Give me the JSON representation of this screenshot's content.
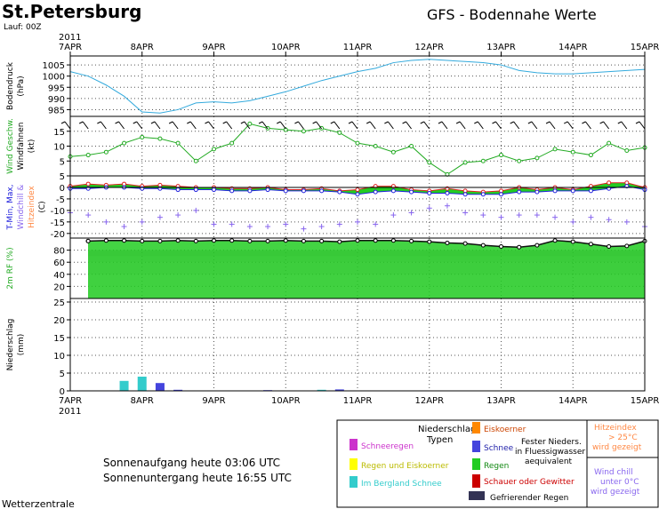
{
  "header": {
    "city": "St.Petersburg",
    "run": "Lauf: 00Z",
    "title": "GFS  -  Bodennahe Werte",
    "year": "2011"
  },
  "footer": {
    "sunrise": "Sonnenaufgang heute 03:06 UTC",
    "sunset": "Sonnenuntergang heute 16:55 UTC",
    "brand": "Wetterzentrale"
  },
  "legend": {
    "title_line1": "Niederschlags",
    "title_line2": "Typen",
    "schneeregen": "Schneeregen",
    "regen_eis": "Regen und Eiskoerner",
    "bergland": "Im Bergland Schnee",
    "eiskoerner": "Eiskoerner",
    "schnee": "Schnee",
    "regen": "Regen",
    "schauer": "Schauer oder Gewitter",
    "gefrierender": "Gefrierender Regen",
    "fester_1": "Fester Nieders.",
    "fester_2": "in Fluessigwasser",
    "fester_3": "aequivalent",
    "hitze_1": "Hitzeindex",
    "hitze_2": "> 25°C",
    "hitze_3": "wird gezeigt",
    "wind_1": "Wind chill",
    "wind_2": "unter 0°C",
    "wind_3": "wird gezeigt",
    "colors": {
      "schneeregen": "#cc33cc",
      "regen_eis": "#ffff00",
      "bergland": "#33cccc",
      "eiskoerner": "#ff8800",
      "schnee": "#4444dd",
      "regen": "#22cc22",
      "schauer": "#cc0000",
      "gefrierender": "#333355",
      "hitze_text": "#ff8844",
      "wind_text": "#8866ee"
    }
  },
  "chart_data": {
    "type": "line",
    "x_labels": [
      "7APR",
      "8APR",
      "9APR",
      "10APR",
      "11APR",
      "12APR",
      "13APR",
      "14APR",
      "15APR"
    ],
    "panels": [
      {
        "name": "pressure",
        "ylabel_1": "Bodendruck",
        "ylabel_2": "(hPa)",
        "yticks": [
          1005,
          1000,
          995,
          990,
          985
        ],
        "ylim": [
          982,
          1009
        ],
        "series": [
          {
            "color": "#33aadd",
            "x": [
              0,
              0.25,
              0.5,
              0.75,
              1,
              1.25,
              1.5,
              1.75,
              2,
              2.25,
              2.5,
              2.75,
              3,
              3.25,
              3.5,
              3.75,
              4,
              4.25,
              4.5,
              4.75,
              5,
              5.25,
              5.5,
              5.75,
              6,
              6.25,
              6.5,
              6.75,
              7,
              7.25,
              7.5,
              7.75,
              8
            ],
            "values": [
              1002,
              1000,
              996,
              991,
              984,
              983.5,
              985,
              988,
              988.5,
              988,
              989,
              991,
              993,
              995.5,
              998,
              1000,
              1002,
              1003.5,
              1006,
              1007,
              1007.5,
              1007,
              1006.5,
              1006,
              1005,
              1002.5,
              1001.5,
              1001,
              1001,
              1001.5,
              1002,
              1002.5,
              1003
            ]
          }
        ]
      },
      {
        "name": "wind",
        "ylabel_1": "Wind Geschw.",
        "ylabel_2": "Windfahnen",
        "ylabel_3": "(kt)",
        "yticks": [
          15,
          10,
          5
        ],
        "ylim": [
          0,
          20
        ],
        "series": [
          {
            "color": "#22aa22",
            "x": [
              0,
              0.25,
              0.5,
              0.75,
              1,
              1.25,
              1.5,
              1.75,
              2,
              2.25,
              2.5,
              2.75,
              3,
              3.25,
              3.5,
              3.75,
              4,
              4.25,
              4.5,
              4.75,
              5,
              5.25,
              5.5,
              5.75,
              6,
              6.25,
              6.5,
              6.75,
              7,
              7.25,
              7.5,
              7.75,
              8
            ],
            "values": [
              6.5,
              7,
              8,
              11,
              13,
              12.5,
              11,
              5,
              9,
              11,
              17.5,
              16,
              15.5,
              15,
              16,
              14.5,
              11,
              10,
              8,
              10,
              4.5,
              0.5,
              4.5,
              5,
              7,
              5,
              6,
              9,
              8,
              7,
              11,
              8.5,
              9.5
            ]
          }
        ]
      },
      {
        "name": "temperature",
        "ylabel_1": "T-Min, Max,",
        "ylabel_2": "Windchill &",
        "ylabel_3": "Hitzeindex",
        "ylabel_4": "(C)",
        "yticks": [
          5,
          0,
          -5,
          -10,
          -15,
          -20
        ],
        "ylim": [
          -22,
          5
        ],
        "tmax": [
          0.5,
          1.5,
          1,
          1.5,
          0.5,
          1,
          0.5,
          0,
          0,
          -0.5,
          -0.5,
          0,
          -1,
          -1,
          -0.5,
          -1.5,
          -1,
          0.5,
          0.5,
          -1,
          -1.5,
          -0.5,
          -1.5,
          -2,
          -1.5,
          0,
          -1,
          0,
          -1,
          0.5,
          2,
          2,
          0
        ],
        "tmin": [
          -0.5,
          -0.5,
          0,
          0,
          -0.5,
          -0.5,
          -1,
          -1,
          -1,
          -1.5,
          -1.5,
          -1,
          -1.5,
          -1.5,
          -1.5,
          -2,
          -3,
          -2,
          -1.5,
          -2,
          -2.5,
          -2.5,
          -3,
          -3,
          -3,
          -2,
          -2,
          -1.5,
          -1.5,
          -1.5,
          -0.5,
          0.5,
          -1
        ],
        "windchill": [
          -11,
          -12,
          -15,
          -17,
          -15,
          -13,
          -12,
          -10,
          -16,
          -16,
          -17,
          -17,
          -16,
          -18,
          -17,
          -16,
          -15,
          -16,
          -12,
          -11,
          -9,
          -8,
          -11,
          -12,
          -13,
          -12,
          -12,
          -13,
          -15,
          -13,
          -14,
          -15,
          -17
        ],
        "colors": {
          "max": "#dd2222",
          "min": "#2222dd",
          "fill": "#22cc22",
          "windchill": "#8866ee"
        }
      },
      {
        "name": "humidity",
        "ylabel_1": "2m RF (%)",
        "yticks": [
          80,
          60,
          40,
          20
        ],
        "ylim": [
          0,
          100
        ],
        "series": [
          {
            "color": "#22cc22",
            "x": [
              0,
              0.25,
              0.5,
              0.75,
              1,
              1.25,
              1.5,
              1.75,
              2,
              2.25,
              2.5,
              2.75,
              3,
              3.25,
              3.5,
              3.75,
              4,
              4.25,
              4.5,
              4.75,
              5,
              5.25,
              5.5,
              5.75,
              6,
              6.25,
              6.5,
              6.75,
              7,
              7.25,
              7.5,
              7.75,
              8
            ],
            "values": [
              95,
              95,
              96,
              96,
              95,
              95,
              96,
              95,
              96,
              96,
              95,
              95,
              96,
              95,
              95,
              94,
              96,
              96,
              96,
              95,
              94,
              92,
              91,
              88,
              86,
              85,
              88,
              96,
              94,
              90,
              86,
              87,
              95
            ]
          }
        ]
      },
      {
        "name": "precipitation",
        "ylabel_1": "Niederschlag",
        "ylabel_2": "(mm)",
        "yticks": [
          25,
          20,
          15,
          10,
          5,
          0
        ],
        "ylim": [
          0,
          26
        ],
        "bars": [
          {
            "x": 0.75,
            "value": 2.8,
            "color": "#33cccc"
          },
          {
            "x": 1.0,
            "value": 4.0,
            "color": "#33cccc"
          },
          {
            "x": 1.25,
            "value": 2.2,
            "color": "#4444dd"
          },
          {
            "x": 1.5,
            "value": 0.3,
            "color": "#4444dd"
          },
          {
            "x": 2.75,
            "value": 0.2,
            "color": "#4444dd"
          },
          {
            "x": 3.5,
            "value": 0.3,
            "color": "#33cccc"
          },
          {
            "x": 3.75,
            "value": 0.4,
            "color": "#4444dd"
          }
        ]
      }
    ]
  }
}
